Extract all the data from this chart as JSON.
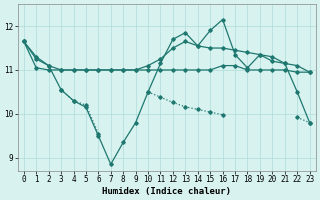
{
  "xlabel": "Humidex (Indice chaleur)",
  "background_color": "#d8f2f0",
  "grid_color": "#aedcda",
  "line_color": "#1e7870",
  "xlim": [
    -0.5,
    23.5
  ],
  "ylim": [
    8.7,
    12.5
  ],
  "xticks": [
    0,
    1,
    2,
    3,
    4,
    5,
    6,
    7,
    8,
    9,
    10,
    11,
    12,
    13,
    14,
    15,
    16,
    17,
    18,
    19,
    20,
    21,
    22,
    23
  ],
  "yticks": [
    9,
    10,
    11,
    12
  ],
  "series": {
    "line1_x": [
      0,
      1,
      2,
      3,
      4,
      5,
      6,
      7,
      8,
      9,
      10,
      11,
      12,
      13,
      14,
      15,
      16,
      17,
      18,
      19,
      20,
      21,
      22,
      23
    ],
    "line1_y": [
      11.65,
      11.3,
      11.1,
      10.55,
      10.3,
      10.15,
      9.5,
      8.85,
      9.35,
      9.8,
      10.5,
      11.15,
      11.7,
      11.85,
      11.55,
      11.9,
      12.15,
      11.35,
      11.05,
      11.35,
      11.2,
      11.15,
      10.5,
      9.8
    ],
    "line2_x": [
      0,
      1,
      2,
      3,
      4,
      5,
      6,
      7,
      8,
      9,
      10,
      11,
      12,
      13,
      14,
      15,
      16,
      17,
      18,
      19,
      20,
      21,
      22,
      23
    ],
    "line2_y": [
      11.65,
      11.05,
      11.0,
      11.0,
      11.0,
      11.0,
      11.0,
      11.0,
      11.0,
      11.0,
      11.0,
      11.0,
      11.0,
      11.0,
      11.0,
      11.0,
      11.1,
      11.1,
      11.0,
      11.0,
      11.0,
      11.0,
      10.95,
      10.95
    ],
    "line3_x": [
      0,
      1,
      2,
      3,
      4,
      5,
      6,
      7,
      8,
      9,
      10,
      11,
      12,
      13,
      14,
      15,
      16,
      17,
      18,
      19,
      20,
      21,
      22,
      23
    ],
    "line3_y": [
      11.65,
      11.25,
      11.1,
      11.0,
      11.0,
      11.0,
      11.0,
      11.0,
      11.0,
      11.0,
      11.1,
      11.25,
      11.5,
      11.65,
      11.55,
      11.5,
      11.5,
      11.45,
      11.4,
      11.35,
      11.3,
      11.15,
      11.1,
      10.95
    ],
    "line4_x": [
      3,
      4,
      5,
      6,
      10,
      11,
      12,
      13,
      14,
      15,
      16,
      22,
      23
    ],
    "line4_y": [
      10.55,
      10.3,
      10.2,
      9.55,
      10.5,
      10.38,
      10.26,
      10.16,
      10.1,
      10.04,
      9.98,
      9.92,
      9.8
    ]
  }
}
